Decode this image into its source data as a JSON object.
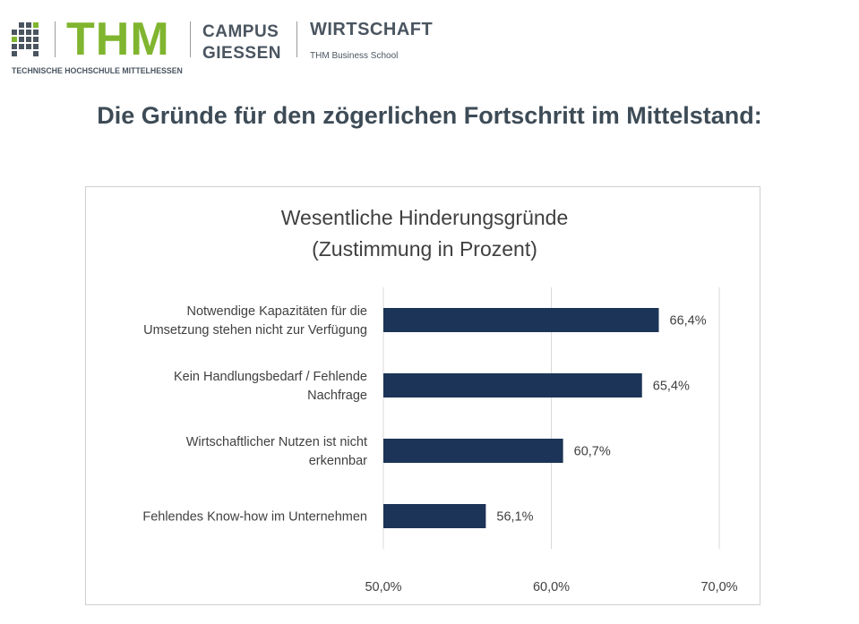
{
  "header": {
    "logo_text": "THM",
    "campus_line1": "CAMPUS",
    "campus_line2": "GIESSEN",
    "department": "WIRTSCHAFT",
    "school": "THM Business School",
    "university": "TECHNISCHE HOCHSCHULE MITTELHESSEN",
    "logo_color": "#80b52f"
  },
  "page": {
    "title": "Die Gründe für den zögerlichen Fortschritt im Mittelstand:"
  },
  "chart_data": {
    "type": "bar",
    "orientation": "horizontal",
    "title_line1": "Wesentliche Hinderungsgründe",
    "title_line2": "(Zustimmung in Prozent)",
    "categories": [
      [
        "Notwendige Kapazitäten für die",
        "Umsetzung stehen nicht zur Verfügung"
      ],
      [
        "Kein Handlungsbedarf / Fehlende",
        "Nachfrage"
      ],
      [
        "Wirtschaftlicher Nutzen ist nicht",
        "erkennbar"
      ],
      [
        "Fehlendes Know-how im Unternehmen"
      ]
    ],
    "values": [
      66.4,
      65.4,
      60.7,
      56.1
    ],
    "value_labels": [
      "66,4%",
      "65,4%",
      "60,7%",
      "56,1%"
    ],
    "xlim": [
      50,
      70
    ],
    "xticks": [
      50,
      60,
      70
    ],
    "xtick_labels": [
      "50,0%",
      "60,0%",
      "70,0%"
    ],
    "grid": true,
    "bar_color": "#1c3457"
  }
}
